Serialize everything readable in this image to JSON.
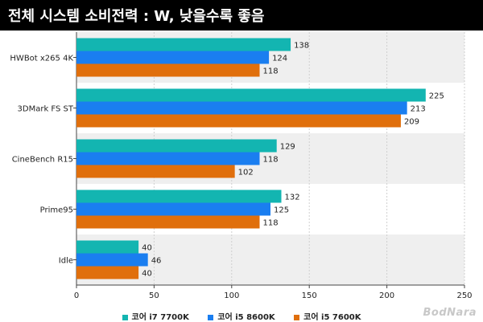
{
  "chart_data": {
    "type": "bar",
    "orientation": "horizontal",
    "title": "전체 시스템 소비전력 : W, 낮을수록 좋음",
    "categories": [
      "HWBot x265 4K",
      "3DMark FS ST",
      "CineBench R15",
      "Prime95",
      "Idle"
    ],
    "series": [
      {
        "name": "코어 i7 7700K",
        "color": "#13b5b1",
        "values": [
          138,
          225,
          129,
          132,
          40
        ]
      },
      {
        "name": "코어 i5 8600K",
        "color": "#1a7ef0",
        "values": [
          124,
          213,
          118,
          125,
          46
        ]
      },
      {
        "name": "코어 i5 7600K",
        "color": "#e06f0c",
        "values": [
          118,
          209,
          102,
          118,
          40
        ]
      }
    ],
    "xlim": [
      0,
      250
    ],
    "xticks": [
      "0",
      "50",
      "100",
      "150",
      "200",
      "250"
    ],
    "legend_position": "bottom",
    "grid": true
  },
  "watermark": "BodNara"
}
